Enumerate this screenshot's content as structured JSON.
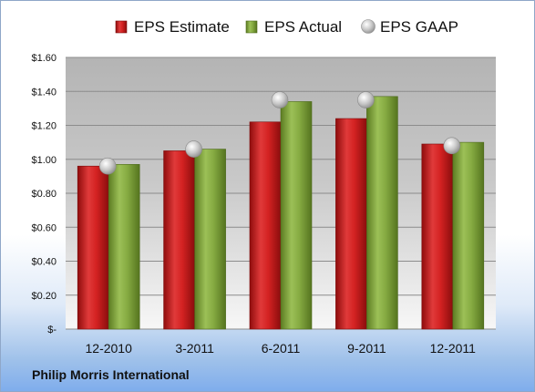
{
  "company": "Philip Morris International",
  "chart_data": {
    "type": "bar",
    "categories": [
      "12-2010",
      "3-2011",
      "6-2011",
      "9-2011",
      "12-2011"
    ],
    "series": [
      {
        "name": "EPS Estimate",
        "values": [
          0.96,
          1.05,
          1.22,
          1.24,
          1.09
        ],
        "color": "#cc1f1f",
        "kind": "bar"
      },
      {
        "name": "EPS Actual",
        "values": [
          0.97,
          1.06,
          1.34,
          1.37,
          1.1
        ],
        "color": "#7fa33a",
        "kind": "bar"
      },
      {
        "name": "EPS GAAP",
        "values": [
          0.96,
          1.06,
          1.35,
          1.35,
          1.08
        ],
        "color": "#c9c9c9",
        "kind": "marker"
      }
    ],
    "ylim": [
      0,
      1.6
    ],
    "yticks": [
      0,
      0.2,
      0.4,
      0.6,
      0.8,
      1.0,
      1.2,
      1.4,
      1.6
    ],
    "ytick_labels": [
      "$-",
      "$0.20",
      "$0.40",
      "$0.60",
      "$0.80",
      "$1.00",
      "$1.20",
      "$1.40",
      "$1.60"
    ],
    "grid": true,
    "legend_position": "top"
  }
}
